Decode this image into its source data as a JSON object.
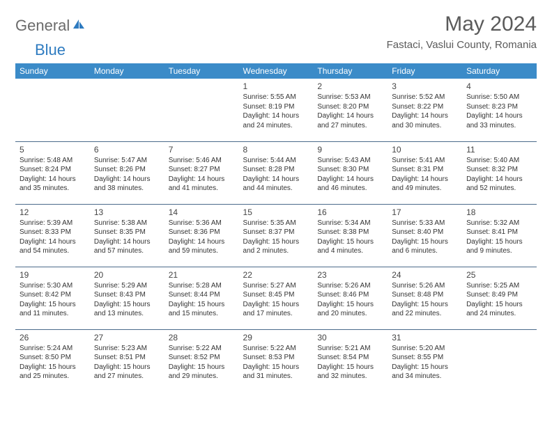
{
  "brand": {
    "text1": "General",
    "text2": "Blue"
  },
  "title": "May 2024",
  "location": "Fastaci, Vaslui County, Romania",
  "colors": {
    "header_bg": "#3b8bc8",
    "header_text": "#ffffff",
    "row_border": "#4a6a8a",
    "body_text": "#333333",
    "title_text": "#5a5a5a",
    "logo_gray": "#6b6b6b",
    "logo_blue": "#2e7bc0"
  },
  "day_headers": [
    "Sunday",
    "Monday",
    "Tuesday",
    "Wednesday",
    "Thursday",
    "Friday",
    "Saturday"
  ],
  "weeks": [
    [
      null,
      null,
      null,
      {
        "n": "1",
        "sr": "5:55 AM",
        "ss": "8:19 PM",
        "dl": "14 hours and 24 minutes."
      },
      {
        "n": "2",
        "sr": "5:53 AM",
        "ss": "8:20 PM",
        "dl": "14 hours and 27 minutes."
      },
      {
        "n": "3",
        "sr": "5:52 AM",
        "ss": "8:22 PM",
        "dl": "14 hours and 30 minutes."
      },
      {
        "n": "4",
        "sr": "5:50 AM",
        "ss": "8:23 PM",
        "dl": "14 hours and 33 minutes."
      }
    ],
    [
      {
        "n": "5",
        "sr": "5:48 AM",
        "ss": "8:24 PM",
        "dl": "14 hours and 35 minutes."
      },
      {
        "n": "6",
        "sr": "5:47 AM",
        "ss": "8:26 PM",
        "dl": "14 hours and 38 minutes."
      },
      {
        "n": "7",
        "sr": "5:46 AM",
        "ss": "8:27 PM",
        "dl": "14 hours and 41 minutes."
      },
      {
        "n": "8",
        "sr": "5:44 AM",
        "ss": "8:28 PM",
        "dl": "14 hours and 44 minutes."
      },
      {
        "n": "9",
        "sr": "5:43 AM",
        "ss": "8:30 PM",
        "dl": "14 hours and 46 minutes."
      },
      {
        "n": "10",
        "sr": "5:41 AM",
        "ss": "8:31 PM",
        "dl": "14 hours and 49 minutes."
      },
      {
        "n": "11",
        "sr": "5:40 AM",
        "ss": "8:32 PM",
        "dl": "14 hours and 52 minutes."
      }
    ],
    [
      {
        "n": "12",
        "sr": "5:39 AM",
        "ss": "8:33 PM",
        "dl": "14 hours and 54 minutes."
      },
      {
        "n": "13",
        "sr": "5:38 AM",
        "ss": "8:35 PM",
        "dl": "14 hours and 57 minutes."
      },
      {
        "n": "14",
        "sr": "5:36 AM",
        "ss": "8:36 PM",
        "dl": "14 hours and 59 minutes."
      },
      {
        "n": "15",
        "sr": "5:35 AM",
        "ss": "8:37 PM",
        "dl": "15 hours and 2 minutes."
      },
      {
        "n": "16",
        "sr": "5:34 AM",
        "ss": "8:38 PM",
        "dl": "15 hours and 4 minutes."
      },
      {
        "n": "17",
        "sr": "5:33 AM",
        "ss": "8:40 PM",
        "dl": "15 hours and 6 minutes."
      },
      {
        "n": "18",
        "sr": "5:32 AM",
        "ss": "8:41 PM",
        "dl": "15 hours and 9 minutes."
      }
    ],
    [
      {
        "n": "19",
        "sr": "5:30 AM",
        "ss": "8:42 PM",
        "dl": "15 hours and 11 minutes."
      },
      {
        "n": "20",
        "sr": "5:29 AM",
        "ss": "8:43 PM",
        "dl": "15 hours and 13 minutes."
      },
      {
        "n": "21",
        "sr": "5:28 AM",
        "ss": "8:44 PM",
        "dl": "15 hours and 15 minutes."
      },
      {
        "n": "22",
        "sr": "5:27 AM",
        "ss": "8:45 PM",
        "dl": "15 hours and 17 minutes."
      },
      {
        "n": "23",
        "sr": "5:26 AM",
        "ss": "8:46 PM",
        "dl": "15 hours and 20 minutes."
      },
      {
        "n": "24",
        "sr": "5:26 AM",
        "ss": "8:48 PM",
        "dl": "15 hours and 22 minutes."
      },
      {
        "n": "25",
        "sr": "5:25 AM",
        "ss": "8:49 PM",
        "dl": "15 hours and 24 minutes."
      }
    ],
    [
      {
        "n": "26",
        "sr": "5:24 AM",
        "ss": "8:50 PM",
        "dl": "15 hours and 25 minutes."
      },
      {
        "n": "27",
        "sr": "5:23 AM",
        "ss": "8:51 PM",
        "dl": "15 hours and 27 minutes."
      },
      {
        "n": "28",
        "sr": "5:22 AM",
        "ss": "8:52 PM",
        "dl": "15 hours and 29 minutes."
      },
      {
        "n": "29",
        "sr": "5:22 AM",
        "ss": "8:53 PM",
        "dl": "15 hours and 31 minutes."
      },
      {
        "n": "30",
        "sr": "5:21 AM",
        "ss": "8:54 PM",
        "dl": "15 hours and 32 minutes."
      },
      {
        "n": "31",
        "sr": "5:20 AM",
        "ss": "8:55 PM",
        "dl": "15 hours and 34 minutes."
      },
      null
    ]
  ],
  "labels": {
    "sunrise": "Sunrise:",
    "sunset": "Sunset:",
    "daylight": "Daylight:"
  }
}
